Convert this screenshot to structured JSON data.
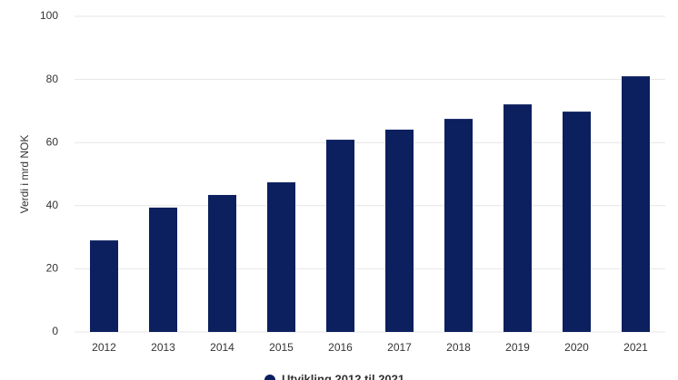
{
  "chart_data": {
    "type": "bar",
    "y_label": "Verdi i mrd NOK",
    "categories": [
      "2012",
      "2013",
      "2014",
      "2015",
      "2016",
      "2017",
      "2018",
      "2019",
      "2020",
      "2021"
    ],
    "series": [
      {
        "name": "Utvikling 2012 til 2021",
        "color": "#0c1f5f",
        "values": [
          29.0,
          39.4,
          43.4,
          47.4,
          60.9,
          64.1,
          67.5,
          72.1,
          69.8,
          81.0
        ]
      }
    ],
    "ylim": [
      0,
      100
    ],
    "yticks": [
      0,
      20,
      40,
      60,
      80,
      100
    ],
    "grid": true,
    "legend": "bottom"
  }
}
